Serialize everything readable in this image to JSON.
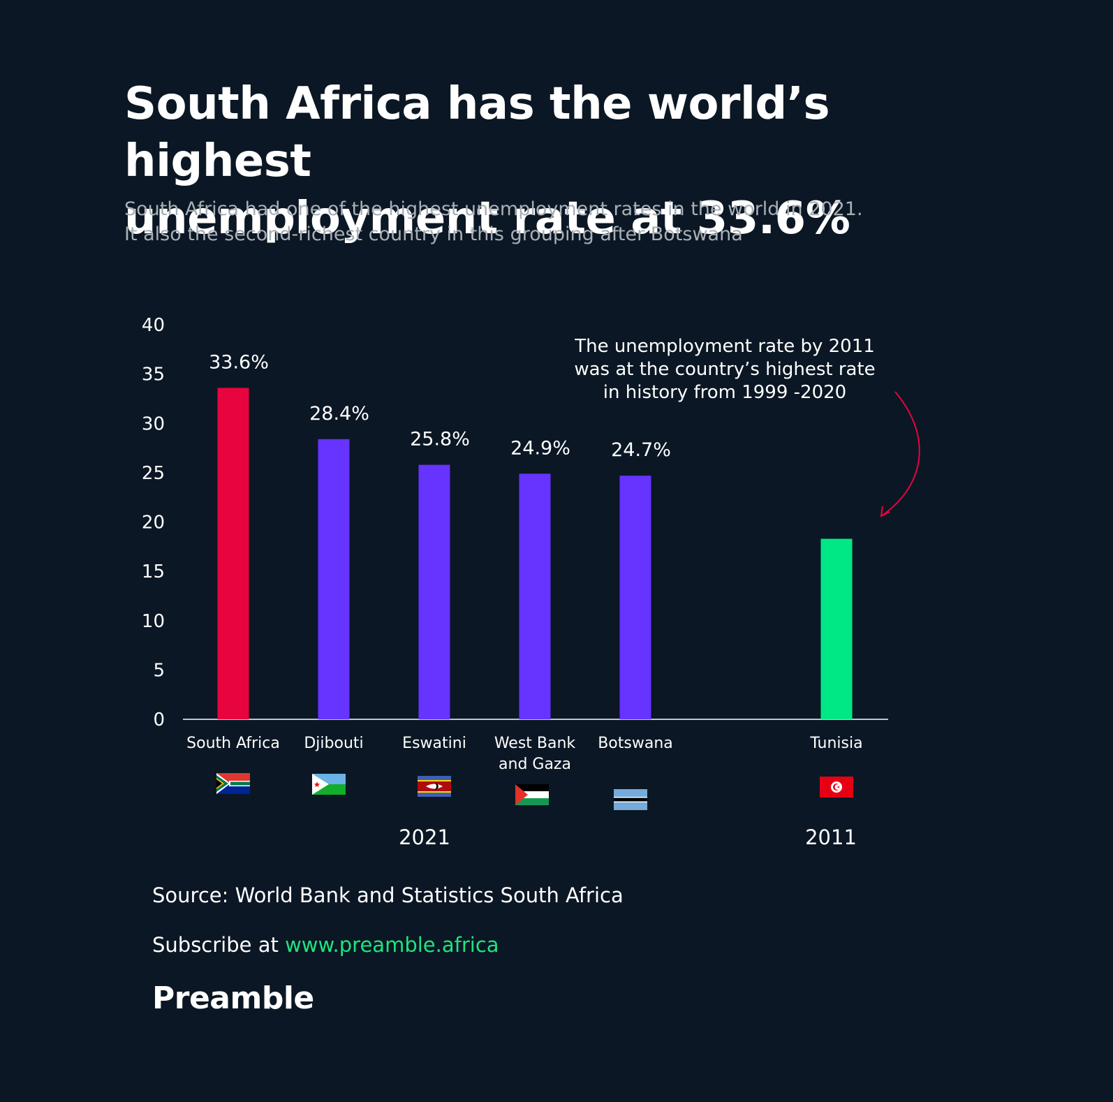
{
  "title_lines": [
    "South Africa has the world’s highest",
    "unemployment rate at 33.6%"
  ],
  "subtitle_lines": [
    "South Africa had one of the highest unemployment rates in the world in 2021.",
    "It also the second-richest country in this grouping after Botswana"
  ],
  "chart_data": {
    "type": "bar",
    "categories": [
      "South Africa",
      "Djibouti",
      "Eswatini",
      "West Bank and Gaza",
      "Botswana",
      "Tunisia"
    ],
    "category_label_lines": [
      [
        "South Africa"
      ],
      [
        "Djibouti"
      ],
      [
        "Eswatini"
      ],
      [
        "West Bank",
        "and Gaza"
      ],
      [
        "Botswana"
      ],
      [
        "Tunisia"
      ]
    ],
    "values": [
      33.6,
      28.4,
      25.8,
      24.9,
      24.7,
      18.3
    ],
    "data_labels": [
      "33.6%",
      "28.4%",
      "25.8%",
      "24.9%",
      "24.7%",
      null
    ],
    "colors": [
      "#e8043f",
      "#6633ff",
      "#6633ff",
      "#6633ff",
      "#6633ff",
      "#00e885"
    ],
    "ylim": [
      0,
      40
    ],
    "yticks": [
      "0",
      "5",
      "10",
      "15",
      "20",
      "25",
      "30",
      "35",
      "40"
    ],
    "groups": [
      {
        "label": "2021",
        "categories": [
          "South Africa",
          "Djibouti",
          "Eswatini",
          "West Bank and Gaza",
          "Botswana"
        ]
      },
      {
        "label": "2011",
        "categories": [
          "Tunisia"
        ]
      }
    ],
    "annotation": {
      "target": "Tunisia",
      "lines": [
        "The unemployment rate by 2011",
        "was at the country’s highest rate",
        "in history from 1999 -2020"
      ],
      "arrow_color": "#e8043f"
    },
    "flags": [
      "south-africa-flag",
      "djibouti-flag",
      "eswatini-flag",
      "palestine-flag",
      "botswana-flag",
      "tunisia-flag"
    ]
  },
  "source_text": "Source: World Bank and Statistics South Africa",
  "subscribe_prefix": "Subscribe at",
  "subscribe_link": "www.preamble.africa",
  "brand": "Preamble"
}
